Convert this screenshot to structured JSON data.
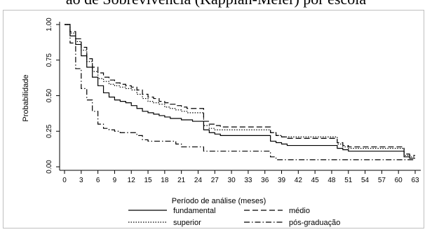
{
  "page_title": "ão de Sobrevivência (Kapplan-Meier) por escola",
  "chart_data": {
    "type": "line",
    "step": true,
    "xlabel": "Período de análise (meses)",
    "ylabel": "Probabilidade",
    "xlim": [
      0,
      64
    ],
    "ylim": [
      0,
      1
    ],
    "xticks": [
      0,
      3,
      6,
      9,
      12,
      15,
      18,
      21,
      24,
      27,
      30,
      33,
      36,
      39,
      42,
      45,
      48,
      51,
      54,
      57,
      60,
      63
    ],
    "yticks": [
      "0.00",
      "0.25",
      "0.50",
      "0.75",
      "1.00"
    ],
    "grid": false,
    "legend_position": "bottom",
    "series": [
      {
        "name": "fundamental",
        "dash": "solid",
        "x": [
          0,
          1,
          2,
          3,
          4,
          5,
          6,
          7,
          8,
          9,
          10,
          11,
          12,
          13,
          14,
          15,
          16,
          17,
          18,
          19,
          20,
          21,
          22,
          23,
          24,
          25,
          26,
          27,
          28,
          29,
          30,
          31,
          32,
          33,
          34,
          35,
          36,
          37,
          38,
          39,
          40,
          41,
          42,
          43,
          44,
          45,
          46,
          47,
          48,
          49,
          50,
          51,
          52,
          53,
          54,
          55,
          56,
          57,
          58,
          59,
          60,
          61,
          62,
          63
        ],
        "y": [
          1.0,
          0.92,
          0.86,
          0.78,
          0.7,
          0.63,
          0.57,
          0.52,
          0.49,
          0.47,
          0.46,
          0.45,
          0.43,
          0.41,
          0.39,
          0.38,
          0.37,
          0.36,
          0.35,
          0.34,
          0.34,
          0.33,
          0.33,
          0.32,
          0.32,
          0.26,
          0.24,
          0.23,
          0.22,
          0.22,
          0.22,
          0.22,
          0.22,
          0.22,
          0.22,
          0.22,
          0.22,
          0.18,
          0.17,
          0.16,
          0.15,
          0.15,
          0.15,
          0.15,
          0.15,
          0.15,
          0.15,
          0.15,
          0.15,
          0.13,
          0.12,
          0.11,
          0.11,
          0.11,
          0.11,
          0.11,
          0.11,
          0.11,
          0.11,
          0.11,
          0.11,
          0.07,
          0.06,
          0.06
        ]
      },
      {
        "name": "médio",
        "dash": "8,4",
        "x": [
          0,
          1,
          2,
          3,
          4,
          5,
          6,
          7,
          8,
          9,
          10,
          11,
          12,
          13,
          14,
          15,
          16,
          17,
          18,
          19,
          20,
          21,
          22,
          23,
          24,
          25,
          26,
          27,
          28,
          29,
          30,
          31,
          32,
          33,
          34,
          35,
          36,
          37,
          38,
          39,
          40,
          41,
          42,
          43,
          44,
          45,
          46,
          47,
          48,
          49,
          50,
          51,
          52,
          53,
          54,
          55,
          56,
          57,
          58,
          59,
          60,
          61,
          62,
          63
        ],
        "y": [
          1.0,
          0.95,
          0.9,
          0.84,
          0.76,
          0.7,
          0.66,
          0.63,
          0.61,
          0.59,
          0.58,
          0.57,
          0.56,
          0.54,
          0.51,
          0.49,
          0.48,
          0.46,
          0.45,
          0.44,
          0.43,
          0.42,
          0.41,
          0.41,
          0.41,
          0.32,
          0.3,
          0.29,
          0.28,
          0.28,
          0.28,
          0.28,
          0.28,
          0.28,
          0.28,
          0.28,
          0.28,
          0.24,
          0.22,
          0.21,
          0.2,
          0.2,
          0.2,
          0.2,
          0.2,
          0.2,
          0.2,
          0.2,
          0.2,
          0.17,
          0.15,
          0.14,
          0.14,
          0.14,
          0.14,
          0.14,
          0.14,
          0.14,
          0.14,
          0.14,
          0.14,
          0.09,
          0.08,
          0.08
        ]
      },
      {
        "name": "superior",
        "dash": "1.5,2",
        "x": [
          0,
          1,
          2,
          3,
          4,
          5,
          6,
          7,
          8,
          9,
          10,
          11,
          12,
          13,
          14,
          15,
          16,
          17,
          18,
          19,
          20,
          21,
          22,
          23,
          24,
          25,
          26,
          27,
          28,
          29,
          30,
          31,
          32,
          33,
          34,
          35,
          36,
          37,
          38,
          39,
          40,
          41,
          42,
          43,
          44,
          45,
          46,
          47,
          48,
          49,
          50,
          51,
          52,
          53,
          54,
          55,
          56,
          57,
          58,
          59,
          60,
          61,
          62,
          63
        ],
        "y": [
          1.0,
          0.94,
          0.88,
          0.82,
          0.74,
          0.67,
          0.62,
          0.6,
          0.58,
          0.57,
          0.56,
          0.55,
          0.54,
          0.51,
          0.48,
          0.46,
          0.45,
          0.44,
          0.42,
          0.41,
          0.4,
          0.39,
          0.38,
          0.38,
          0.38,
          0.29,
          0.27,
          0.26,
          0.26,
          0.26,
          0.26,
          0.26,
          0.26,
          0.26,
          0.26,
          0.26,
          0.26,
          0.24,
          0.22,
          0.21,
          0.21,
          0.21,
          0.21,
          0.21,
          0.21,
          0.21,
          0.21,
          0.21,
          0.21,
          0.16,
          0.14,
          0.13,
          0.13,
          0.13,
          0.13,
          0.13,
          0.13,
          0.13,
          0.13,
          0.13,
          0.13,
          0.08,
          0.07,
          0.07
        ]
      },
      {
        "name": "pós-graduação",
        "dash": "8,3,1.5,3",
        "x": [
          0,
          1,
          2,
          3,
          4,
          5,
          6,
          7,
          8,
          9,
          10,
          11,
          12,
          13,
          14,
          15,
          16,
          17,
          18,
          19,
          20,
          21,
          22,
          23,
          24,
          25,
          26,
          27,
          28,
          29,
          30,
          31,
          32,
          33,
          34,
          35,
          36,
          37,
          38,
          39,
          40,
          41,
          42,
          43,
          44,
          45,
          46,
          47,
          48,
          49,
          50,
          51,
          52,
          53,
          54,
          55,
          56,
          57,
          58,
          59,
          60,
          61,
          62,
          63
        ],
        "y": [
          1.0,
          0.87,
          0.69,
          0.55,
          0.47,
          0.39,
          0.3,
          0.27,
          0.26,
          0.25,
          0.24,
          0.24,
          0.24,
          0.22,
          0.19,
          0.18,
          0.18,
          0.18,
          0.18,
          0.18,
          0.16,
          0.14,
          0.14,
          0.14,
          0.14,
          0.11,
          0.11,
          0.11,
          0.11,
          0.11,
          0.11,
          0.11,
          0.11,
          0.11,
          0.11,
          0.11,
          0.11,
          0.07,
          0.05,
          0.05,
          0.05,
          0.05,
          0.05,
          0.05,
          0.05,
          0.05,
          0.05,
          0.05,
          0.05,
          0.05,
          0.05,
          0.05,
          0.05,
          0.05,
          0.05,
          0.05,
          0.05,
          0.05,
          0.05,
          0.05,
          0.05,
          0.05,
          0.05,
          0.05
        ]
      }
    ]
  }
}
